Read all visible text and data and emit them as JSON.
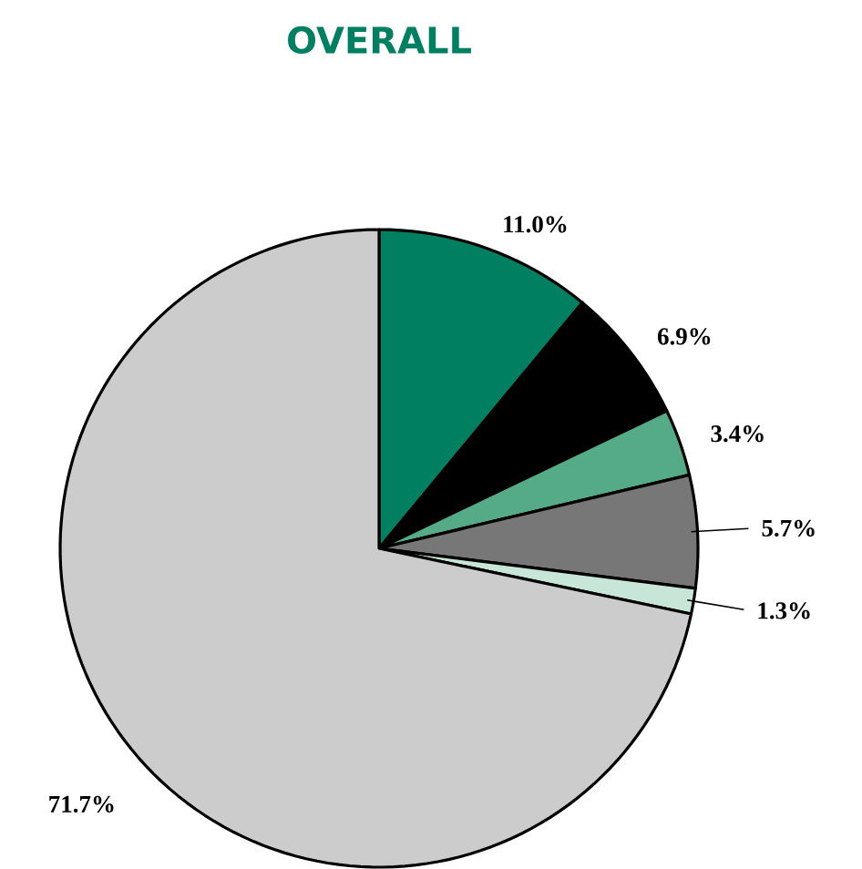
{
  "chart_data": {
    "type": "pie",
    "title": "OVERALL",
    "categories": [
      null,
      null,
      null,
      null,
      null,
      null
    ],
    "values": [
      11.0,
      6.9,
      3.4,
      5.7,
      1.3,
      71.7
    ],
    "colors": [
      "#008060",
      "#000000",
      "#55aa88",
      "#777777",
      "#c8e6d8",
      "#cccccc"
    ],
    "value_labels": [
      "11.0%",
      "6.9%",
      "3.4%",
      "5.7%",
      "1.3%",
      "71.7%"
    ]
  }
}
